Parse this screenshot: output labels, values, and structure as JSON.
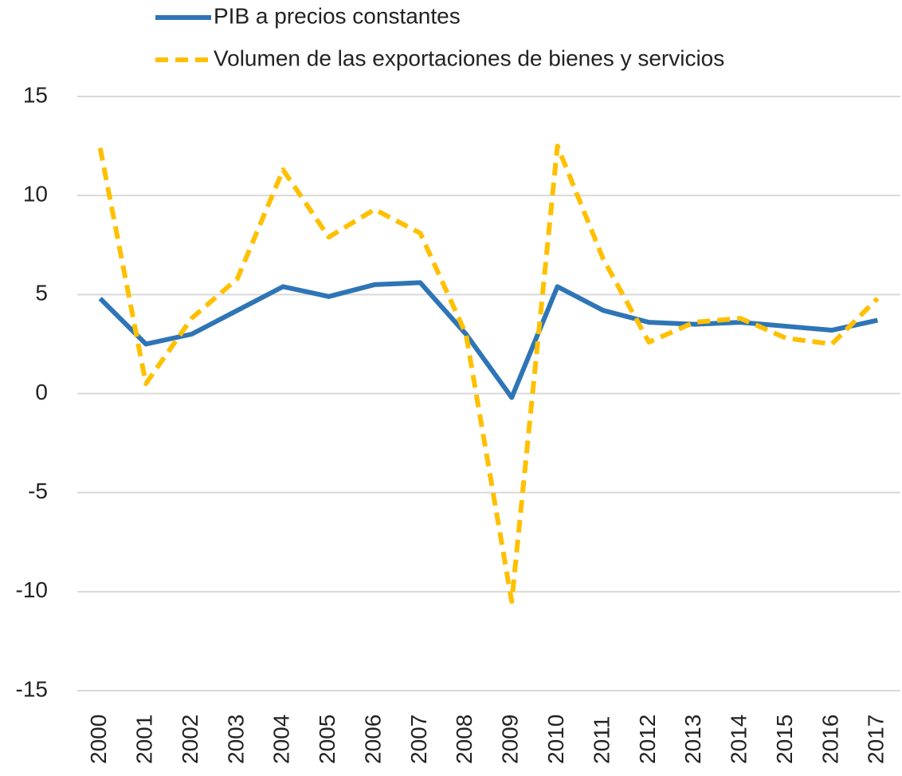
{
  "chart_data": {
    "type": "line",
    "categories": [
      "2000",
      "2001",
      "2002",
      "2003",
      "2004",
      "2005",
      "2006",
      "2007",
      "2008",
      "2009",
      "2010",
      "2011",
      "2012",
      "2013",
      "2014",
      "2015",
      "2016",
      "2017"
    ],
    "series": [
      {
        "name": "PIB a precios constantes",
        "color": "#2e75b6",
        "dash": false,
        "values": [
          4.8,
          2.5,
          3.0,
          4.2,
          5.4,
          4.9,
          5.5,
          5.6,
          3.0,
          -0.2,
          5.4,
          4.2,
          3.6,
          3.5,
          3.6,
          3.4,
          3.2,
          3.7
        ]
      },
      {
        "name": "Volumen de las exportaciones de bienes y servicios",
        "color": "#ffc000",
        "dash": true,
        "values": [
          12.4,
          0.5,
          3.8,
          5.8,
          11.3,
          7.9,
          9.3,
          8.1,
          3.0,
          -10.5,
          12.5,
          6.8,
          2.6,
          3.6,
          3.8,
          2.8,
          2.5,
          4.8
        ]
      }
    ],
    "ylim": [
      -15,
      15
    ],
    "yticks": [
      -15,
      -10,
      -5,
      0,
      5,
      10,
      15
    ],
    "grid": true,
    "legend": "top"
  }
}
